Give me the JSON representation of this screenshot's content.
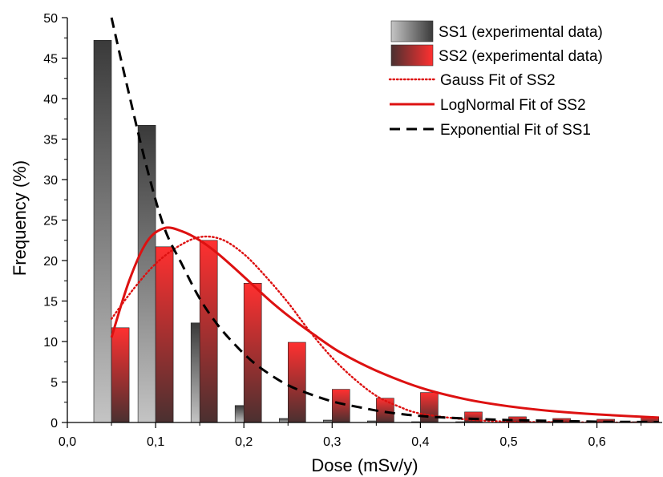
{
  "chart_data": {
    "type": "bar",
    "xlabel": "Dose (mSv/y)",
    "ylabel": "Frequency (%)",
    "xlim": [
      0,
      0.67
    ],
    "ylim": [
      0,
      50
    ],
    "x_ticks": [
      "0,0",
      "0,1",
      "0,2",
      "0,3",
      "0,4",
      "0,5",
      "0,6"
    ],
    "y_ticks": [
      "0",
      "5",
      "10",
      "15",
      "20",
      "25",
      "30",
      "35",
      "40",
      "45",
      "50"
    ],
    "grid": false,
    "legend_position": "top-right",
    "series": [
      {
        "name": "SS1 (experimental data)",
        "kind": "bar",
        "color": "#555555",
        "x": [
          0.04,
          0.09,
          0.15,
          0.2,
          0.25,
          0.3,
          0.35,
          0.4,
          0.45,
          0.5,
          0.55,
          0.6,
          0.65
        ],
        "values": [
          47.2,
          36.7,
          12.3,
          2.1,
          0.5,
          0.3,
          0.2,
          0.1,
          0.1,
          0.1,
          0.1,
          0.1,
          0.1
        ]
      },
      {
        "name": "SS2 (experimental data)",
        "kind": "bar",
        "color": "#ee2222",
        "x": [
          0.06,
          0.11,
          0.16,
          0.21,
          0.26,
          0.31,
          0.36,
          0.41,
          0.46,
          0.51,
          0.56,
          0.61,
          0.66
        ],
        "values": [
          11.7,
          21.7,
          22.5,
          17.2,
          9.9,
          4.1,
          3.0,
          3.7,
          1.3,
          0.7,
          0.5,
          0.4,
          0.7
        ]
      },
      {
        "name": "Gauss Fit of SS2",
        "kind": "line",
        "style": "dotted",
        "color": "#dd1111",
        "x": [
          0.05,
          0.075,
          0.1,
          0.125,
          0.15,
          0.175,
          0.2,
          0.225,
          0.25,
          0.275,
          0.3,
          0.325,
          0.35,
          0.375,
          0.4,
          0.45,
          0.5,
          0.55,
          0.6,
          0.67
        ],
        "y": [
          12.8,
          16.5,
          19.6,
          21.7,
          22.9,
          22.6,
          20.8,
          18.0,
          14.8,
          11.2,
          8.0,
          5.4,
          3.3,
          2.0,
          1.1,
          0.4,
          0.1,
          0.05,
          0.0,
          0.0
        ]
      },
      {
        "name": "LogNormal Fit of SS2",
        "kind": "line",
        "style": "solid",
        "color": "#dd1111",
        "x": [
          0.05,
          0.07,
          0.09,
          0.11,
          0.13,
          0.15,
          0.17,
          0.19,
          0.21,
          0.23,
          0.25,
          0.28,
          0.31,
          0.35,
          0.4,
          0.45,
          0.5,
          0.55,
          0.6,
          0.67
        ],
        "y": [
          10.5,
          17.5,
          22.3,
          24.0,
          23.6,
          22.5,
          20.9,
          19.0,
          17.0,
          15.0,
          13.2,
          10.8,
          8.6,
          6.4,
          4.3,
          2.9,
          2.0,
          1.4,
          1.0,
          0.6
        ]
      },
      {
        "name": "Exponential Fit of SS1",
        "kind": "line",
        "style": "dashed",
        "color": "#000000",
        "x": [
          0.05,
          0.07,
          0.09,
          0.11,
          0.13,
          0.15,
          0.17,
          0.19,
          0.21,
          0.23,
          0.25,
          0.27,
          0.3,
          0.33,
          0.36,
          0.4,
          0.45,
          0.5,
          0.55,
          0.6,
          0.67
        ],
        "y": [
          50.0,
          40.5,
          31.5,
          24.0,
          19.5,
          15.3,
          12.1,
          9.6,
          7.5,
          5.9,
          4.6,
          3.7,
          2.6,
          1.9,
          1.3,
          0.8,
          0.5,
          0.3,
          0.2,
          0.1,
          0.05
        ]
      }
    ]
  }
}
